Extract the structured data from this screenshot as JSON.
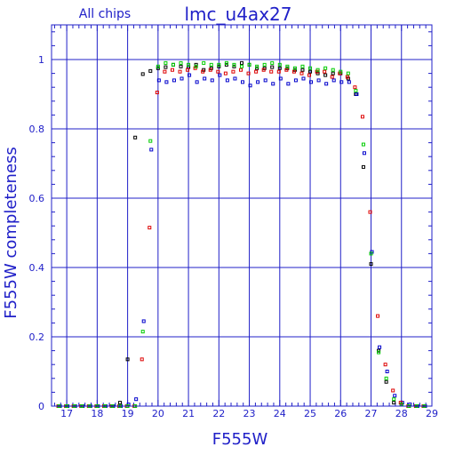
{
  "chart_data": {
    "type": "scatter",
    "title": "lmc_u4ax27",
    "subtitle": "All chips",
    "xlabel": "F555W",
    "ylabel": "F555W completeness",
    "xlim": [
      16.5,
      29
    ],
    "ylim": [
      0,
      1.1
    ],
    "grid": true,
    "x_ticks": [
      17,
      18,
      19,
      20,
      21,
      22,
      23,
      24,
      25,
      26,
      27,
      28,
      29
    ],
    "y_ticks": [
      0,
      0.2,
      0.4,
      0.6,
      0.8,
      1
    ],
    "colors": {
      "axis": "#2020c8",
      "grid": "#2020c8",
      "series_black": "#000000",
      "series_blue": "#0000cc",
      "series_red": "#dd0000",
      "series_green": "#00cc00"
    },
    "series": [
      {
        "color": "#000000",
        "x": [
          16.75,
          17.0,
          17.25,
          17.5,
          17.75,
          18.0,
          18.25,
          18.5,
          18.75,
          19.0,
          19.25,
          19.5,
          19.75,
          20.0,
          20.25,
          20.5,
          20.75,
          21.0,
          21.25,
          21.5,
          21.75,
          22.0,
          22.25,
          22.5,
          22.75,
          23.0,
          23.25,
          23.5,
          23.75,
          24.0,
          24.25,
          24.5,
          24.75,
          25.0,
          25.25,
          25.5,
          25.75,
          26.0,
          26.25,
          26.5,
          26.75,
          27.0,
          27.25,
          27.5,
          27.75,
          28.0,
          28.25,
          28.5,
          28.75
        ],
        "y": [
          0,
          0,
          0,
          0,
          0,
          0,
          0,
          0,
          0.01,
          0.135,
          0.775,
          0.958,
          0.967,
          0.975,
          0.978,
          0.985,
          0.98,
          0.978,
          0.985,
          0.97,
          0.975,
          0.98,
          0.985,
          0.98,
          0.99,
          0.985,
          0.975,
          0.975,
          0.978,
          0.975,
          0.975,
          0.97,
          0.97,
          0.965,
          0.96,
          0.955,
          0.96,
          0.96,
          0.945,
          0.9,
          0.69,
          0.41,
          0.16,
          0.07,
          0.01,
          0.005,
          0,
          0,
          0
        ]
      },
      {
        "color": "#0000cc",
        "x": [
          16.75,
          17.0,
          17.25,
          17.5,
          17.75,
          18.0,
          18.25,
          18.5,
          18.75,
          19.0,
          19.25,
          19.5,
          19.75,
          20.0,
          20.25,
          20.5,
          20.75,
          21.0,
          21.25,
          21.5,
          21.75,
          22.0,
          22.25,
          22.5,
          22.75,
          23.0,
          23.25,
          23.5,
          23.75,
          24.0,
          24.25,
          24.5,
          24.75,
          25.0,
          25.25,
          25.5,
          25.75,
          26.0,
          26.25,
          26.5,
          26.75,
          27.0,
          27.25,
          27.5,
          27.75,
          28.0,
          28.25,
          28.5,
          28.75
        ],
        "y": [
          0,
          0,
          0,
          0,
          0,
          0,
          0,
          0,
          0,
          0.005,
          0.02,
          0.245,
          0.74,
          0.94,
          0.935,
          0.94,
          0.945,
          0.955,
          0.935,
          0.945,
          0.94,
          0.955,
          0.94,
          0.945,
          0.935,
          0.925,
          0.935,
          0.94,
          0.93,
          0.945,
          0.93,
          0.94,
          0.945,
          0.935,
          0.94,
          0.93,
          0.94,
          0.935,
          0.935,
          0.9,
          0.73,
          0.445,
          0.17,
          0.1,
          0.03,
          0.01,
          0.005,
          0,
          0
        ]
      },
      {
        "color": "#dd0000",
        "x": [
          16.75,
          17.0,
          17.25,
          17.5,
          17.75,
          18.0,
          18.25,
          18.5,
          18.75,
          19.0,
          19.25,
          19.5,
          19.75,
          20.0,
          20.25,
          20.5,
          20.75,
          21.0,
          21.25,
          21.5,
          21.75,
          22.0,
          22.25,
          22.5,
          22.75,
          23.0,
          23.25,
          23.5,
          23.75,
          24.0,
          24.25,
          24.5,
          24.75,
          25.0,
          25.25,
          25.5,
          25.75,
          26.0,
          26.25,
          26.5,
          26.75,
          27.0,
          27.25,
          27.5,
          27.75,
          28.0,
          28.25,
          28.5,
          28.75
        ],
        "y": [
          0,
          0,
          0,
          0,
          0,
          0,
          0,
          0,
          0,
          0,
          0,
          0.135,
          0.515,
          0.905,
          0.965,
          0.97,
          0.965,
          0.97,
          0.975,
          0.965,
          0.97,
          0.965,
          0.96,
          0.965,
          0.97,
          0.96,
          0.965,
          0.97,
          0.965,
          0.965,
          0.97,
          0.965,
          0.96,
          0.955,
          0.965,
          0.965,
          0.95,
          0.96,
          0.95,
          0.92,
          0.835,
          0.56,
          0.26,
          0.12,
          0.045,
          0.01,
          0,
          0,
          0
        ]
      },
      {
        "color": "#00cc00",
        "x": [
          16.75,
          17.0,
          17.25,
          17.5,
          17.75,
          18.0,
          18.25,
          18.5,
          18.75,
          19.0,
          19.25,
          19.5,
          19.75,
          20.0,
          20.25,
          20.5,
          20.75,
          21.0,
          21.25,
          21.5,
          21.75,
          22.0,
          22.25,
          22.5,
          22.75,
          23.0,
          23.25,
          23.5,
          23.75,
          24.0,
          24.25,
          24.5,
          24.75,
          25.0,
          25.25,
          25.5,
          25.75,
          26.0,
          26.25,
          26.5,
          26.75,
          27.0,
          27.25,
          27.5,
          27.75,
          28.0,
          28.25,
          28.5,
          28.75
        ],
        "y": [
          0,
          0,
          0,
          0,
          0,
          0,
          0,
          0,
          0,
          0,
          0,
          0.215,
          0.765,
          0.98,
          0.99,
          0.985,
          0.99,
          0.985,
          0.98,
          0.99,
          0.985,
          0.985,
          0.99,
          0.985,
          0.98,
          0.985,
          0.98,
          0.985,
          0.99,
          0.985,
          0.98,
          0.975,
          0.98,
          0.975,
          0.97,
          0.975,
          0.97,
          0.965,
          0.96,
          0.91,
          0.755,
          0.44,
          0.155,
          0.08,
          0.02,
          0.005,
          0,
          0,
          0
        ]
      }
    ]
  }
}
